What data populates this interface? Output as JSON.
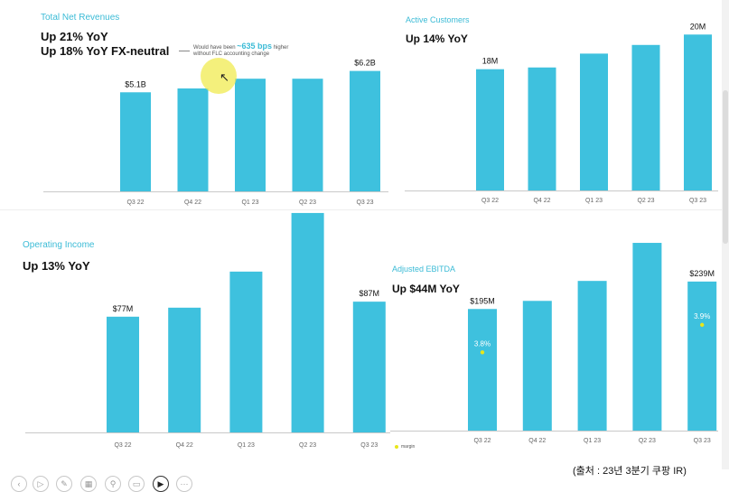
{
  "panels": [
    {
      "id": "revenue",
      "title": "Total Net Revenues",
      "headlines": [
        "Up 21% YoY",
        "Up 18% YoY FX-neutral"
      ],
      "note": {
        "prefix": "Would have been ",
        "emph": "~635 bps",
        "suffix": " higher",
        "line2": "without FLC accounting change"
      }
    },
    {
      "id": "customers",
      "title": "Active Customers",
      "headlines": [
        "Up 14% YoY"
      ]
    },
    {
      "id": "opincome",
      "title": "Operating Income",
      "headlines": [
        "Up 13% YoY"
      ]
    },
    {
      "id": "ebitda",
      "title": "Adjusted EBITDA",
      "headlines": [
        "Up $44M YoY"
      ],
      "legend": "margin"
    }
  ],
  "chart_data": [
    {
      "type": "bar",
      "title": "Total Net Revenues",
      "categories": [
        "Q3 22",
        "Q4 22",
        "Q1 23",
        "Q2 23",
        "Q3 23"
      ],
      "values": [
        5.1,
        5.3,
        5.8,
        5.8,
        6.2
      ],
      "unit": "$B",
      "data_labels": [
        "$5.1B",
        "",
        "",
        "",
        "$6.2B"
      ],
      "ylim": [
        0,
        7.9
      ],
      "grid": false
    },
    {
      "type": "bar",
      "title": "Active Customers",
      "categories": [
        "Q3 22",
        "Q4 22",
        "Q1 23",
        "Q2 23",
        "Q3 23"
      ],
      "values": [
        18.0,
        18.1,
        18.9,
        19.4,
        20.0
      ],
      "unit": "M",
      "data_labels": [
        "18M",
        "",
        "",
        "",
        "20M"
      ],
      "ylim": [
        11.0,
        20.9
      ],
      "grid": false
    },
    {
      "type": "bar",
      "title": "Operating Income",
      "categories": [
        "Q3 22",
        "Q4 22",
        "Q1 23",
        "Q2 23",
        "Q3 23"
      ],
      "values": [
        77,
        83,
        107,
        146,
        87
      ],
      "unit": "$M",
      "data_labels": [
        "$77M",
        "",
        "",
        "",
        "$87M"
      ],
      "ylim": [
        0,
        182
      ],
      "grid": false
    },
    {
      "type": "bar",
      "title": "Adjusted EBITDA",
      "categories": [
        "Q3 22",
        "Q4 22",
        "Q1 23",
        "Q2 23",
        "Q3 23"
      ],
      "values": [
        195,
        208,
        240,
        301,
        239
      ],
      "unit": "$M",
      "data_labels": [
        "$195M",
        "",
        "",
        "",
        "$239M"
      ],
      "margin_labels": [
        "3.8%",
        "",
        "",
        "",
        "3.9%"
      ],
      "ylim": [
        0,
        385
      ],
      "grid": false
    }
  ],
  "source": "(출처 : 23년 3분기 쿠팡 IR)",
  "controls": [
    "prev-icon",
    "play-icon",
    "pen-icon",
    "slides-icon",
    "zoom-icon",
    "subtitle-icon",
    "camera-icon",
    "more-icon"
  ],
  "colors": {
    "bar": "#3ec1de",
    "title": "#3bbbd6",
    "margin_dot": "#e8e61a"
  }
}
